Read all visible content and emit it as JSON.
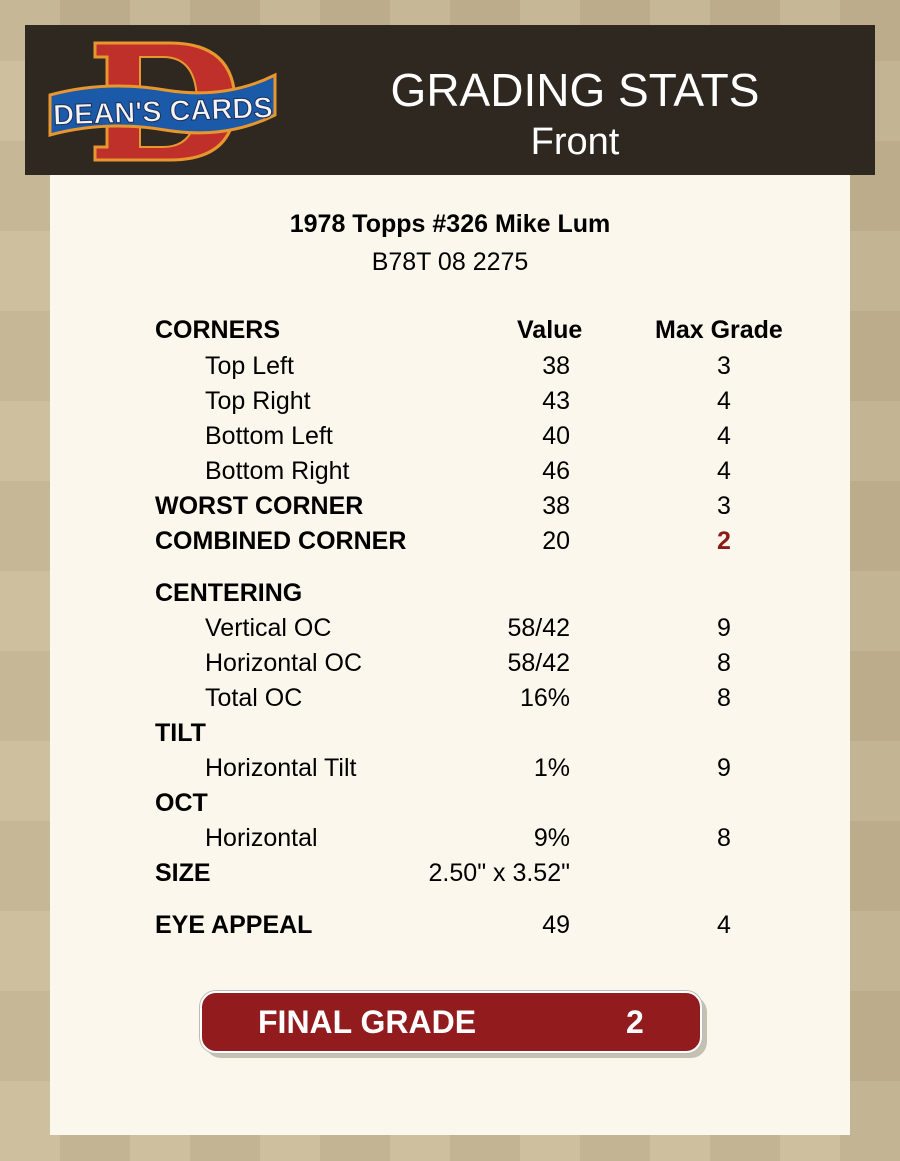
{
  "header": {
    "logo_text": "DEAN'S CARDS",
    "title": "GRADING STATS",
    "subtitle": "Front"
  },
  "card": {
    "title": "1978 Topps #326 Mike Lum",
    "cert": "B78T 08 2275"
  },
  "columns": {
    "value": "Value",
    "max_grade": "Max Grade"
  },
  "rows": [
    {
      "label": "CORNERS",
      "section": true,
      "value": "",
      "max": ""
    },
    {
      "label": "Top Left",
      "value": "38",
      "max": "3"
    },
    {
      "label": "Top Right",
      "value": "43",
      "max": "4"
    },
    {
      "label": "Bottom Left",
      "value": "40",
      "max": "4"
    },
    {
      "label": "Bottom Right",
      "value": "46",
      "max": "4"
    },
    {
      "label": "WORST CORNER",
      "section": true,
      "value": "38",
      "max": "3"
    },
    {
      "label": "COMBINED CORNER",
      "section": true,
      "value": "20",
      "max": "2",
      "highlight": true
    },
    {
      "label": "CENTERING",
      "section": true,
      "value": "",
      "max": ""
    },
    {
      "label": "Vertical OC",
      "value": "58/42",
      "max": "9"
    },
    {
      "label": "Horizontal OC",
      "value": "58/42",
      "max": "8"
    },
    {
      "label": "Total OC",
      "value": "16%",
      "max": "8"
    },
    {
      "label": "TILT",
      "section": true,
      "value": "",
      "max": ""
    },
    {
      "label": "Horizontal Tilt",
      "value": "1%",
      "max": "9"
    },
    {
      "label": "OCT",
      "section": true,
      "value": "",
      "max": ""
    },
    {
      "label": "Horizontal",
      "value": "9%",
      "max": "8"
    },
    {
      "label": "SIZE",
      "section": true,
      "value": "2.50\" x 3.52\"",
      "max": ""
    },
    {
      "label": "EYE APPEAL",
      "section": true,
      "value": "49",
      "max": "4"
    }
  ],
  "final": {
    "label": "FINAL GRADE",
    "value": "2"
  },
  "colors": {
    "header_bg": "#2e2820",
    "panel_bg": "#fcf7ec",
    "accent_red": "#921b1d",
    "highlight_red": "#8f1a1a"
  }
}
